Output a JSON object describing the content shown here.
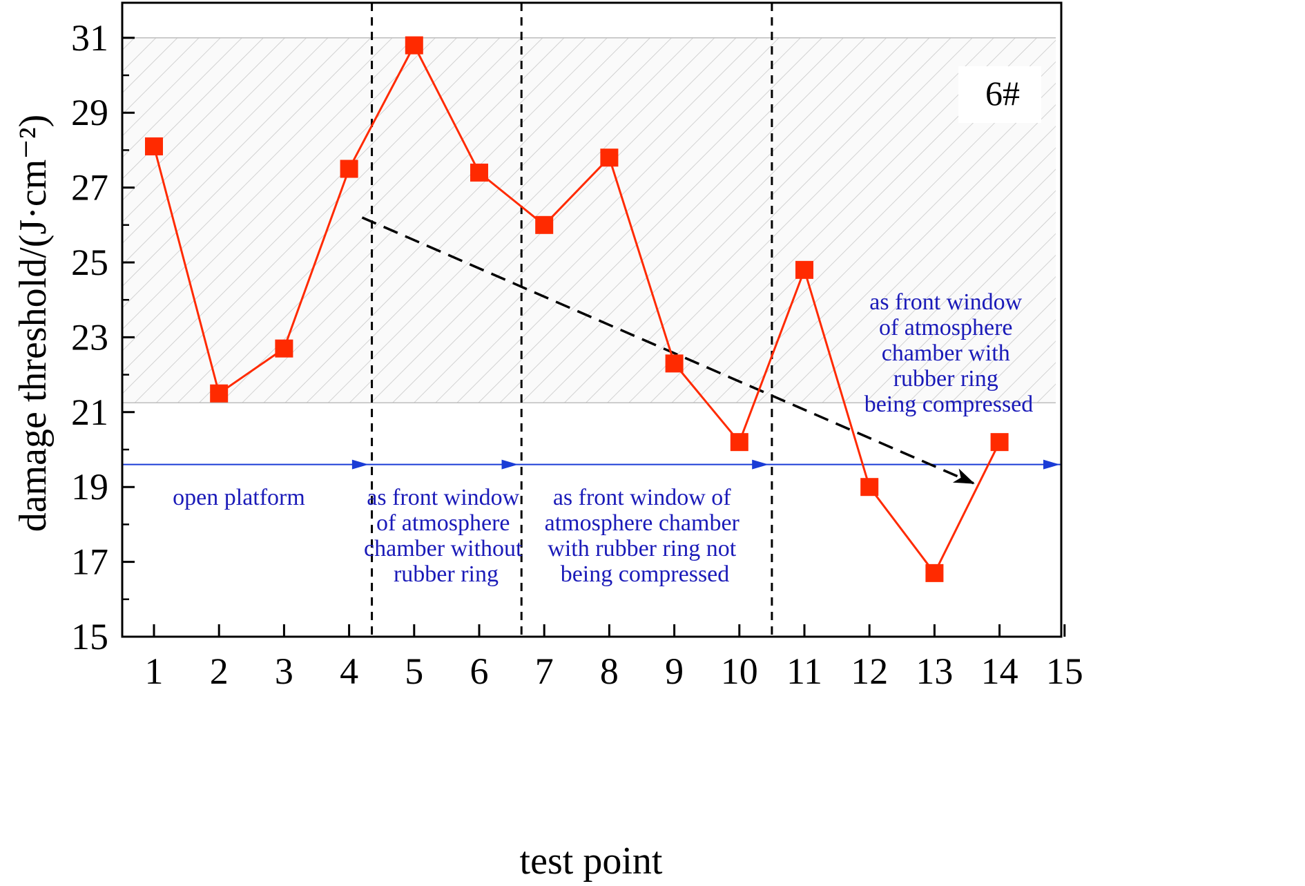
{
  "chart_data": {
    "type": "line",
    "xlabel": "test point",
    "ylabel": "damage threshold/(J·cm⁻²)",
    "xlim": [
      0.5,
      15
    ],
    "ylim": [
      15,
      32
    ],
    "xticks": [
      "1",
      "2",
      "3",
      "4",
      "5",
      "6",
      "7",
      "8",
      "9",
      "10",
      "11",
      "12",
      "13",
      "14",
      "15"
    ],
    "yticks": [
      "15",
      "17",
      "19",
      "21",
      "23",
      "25",
      "27",
      "29",
      "31"
    ],
    "grid": false,
    "series": [
      {
        "color": "#ff2a00",
        "marker": "square",
        "x": [
          1,
          2,
          3,
          4,
          5,
          6,
          7,
          8,
          9,
          10,
          11,
          12,
          13,
          14
        ],
        "y": [
          28.1,
          21.5,
          22.7,
          27.5,
          30.8,
          27.4,
          26.0,
          27.8,
          22.3,
          20.2,
          24.8,
          19.0,
          16.7,
          20.2
        ]
      }
    ],
    "shaded_band": {
      "y_low": 21.25,
      "y_high": 31.0,
      "pattern": "diagonal hatch"
    },
    "dividers_x": [
      4.35,
      6.65,
      10.5
    ],
    "arrow_line_y": 19.6,
    "arrow_heads_x": [
      4.3,
      6.6,
      10.45,
      15.0
    ],
    "trend_arrow": {
      "from": [
        4.2,
        26.2
      ],
      "to": [
        13.6,
        19.1
      ],
      "style": "dashed"
    },
    "annotations": {
      "badge": "6#",
      "region1": [
        "open platform"
      ],
      "region2": [
        "as front window",
        "of atmosphere",
        "chamber without",
        "rubber ring"
      ],
      "region3": [
        "as front window of",
        "atmosphere chamber",
        "with rubber ring not",
        "being compressed"
      ],
      "region4": [
        "as front window",
        "of atmosphere",
        "chamber with",
        "rubber ring",
        "being compressed"
      ]
    },
    "colors": {
      "series": "#ff2a00",
      "annotation": "#1a1ab8",
      "arrow_line": "#1a3cd6",
      "divider": "#000000",
      "trend": "#000000"
    }
  }
}
